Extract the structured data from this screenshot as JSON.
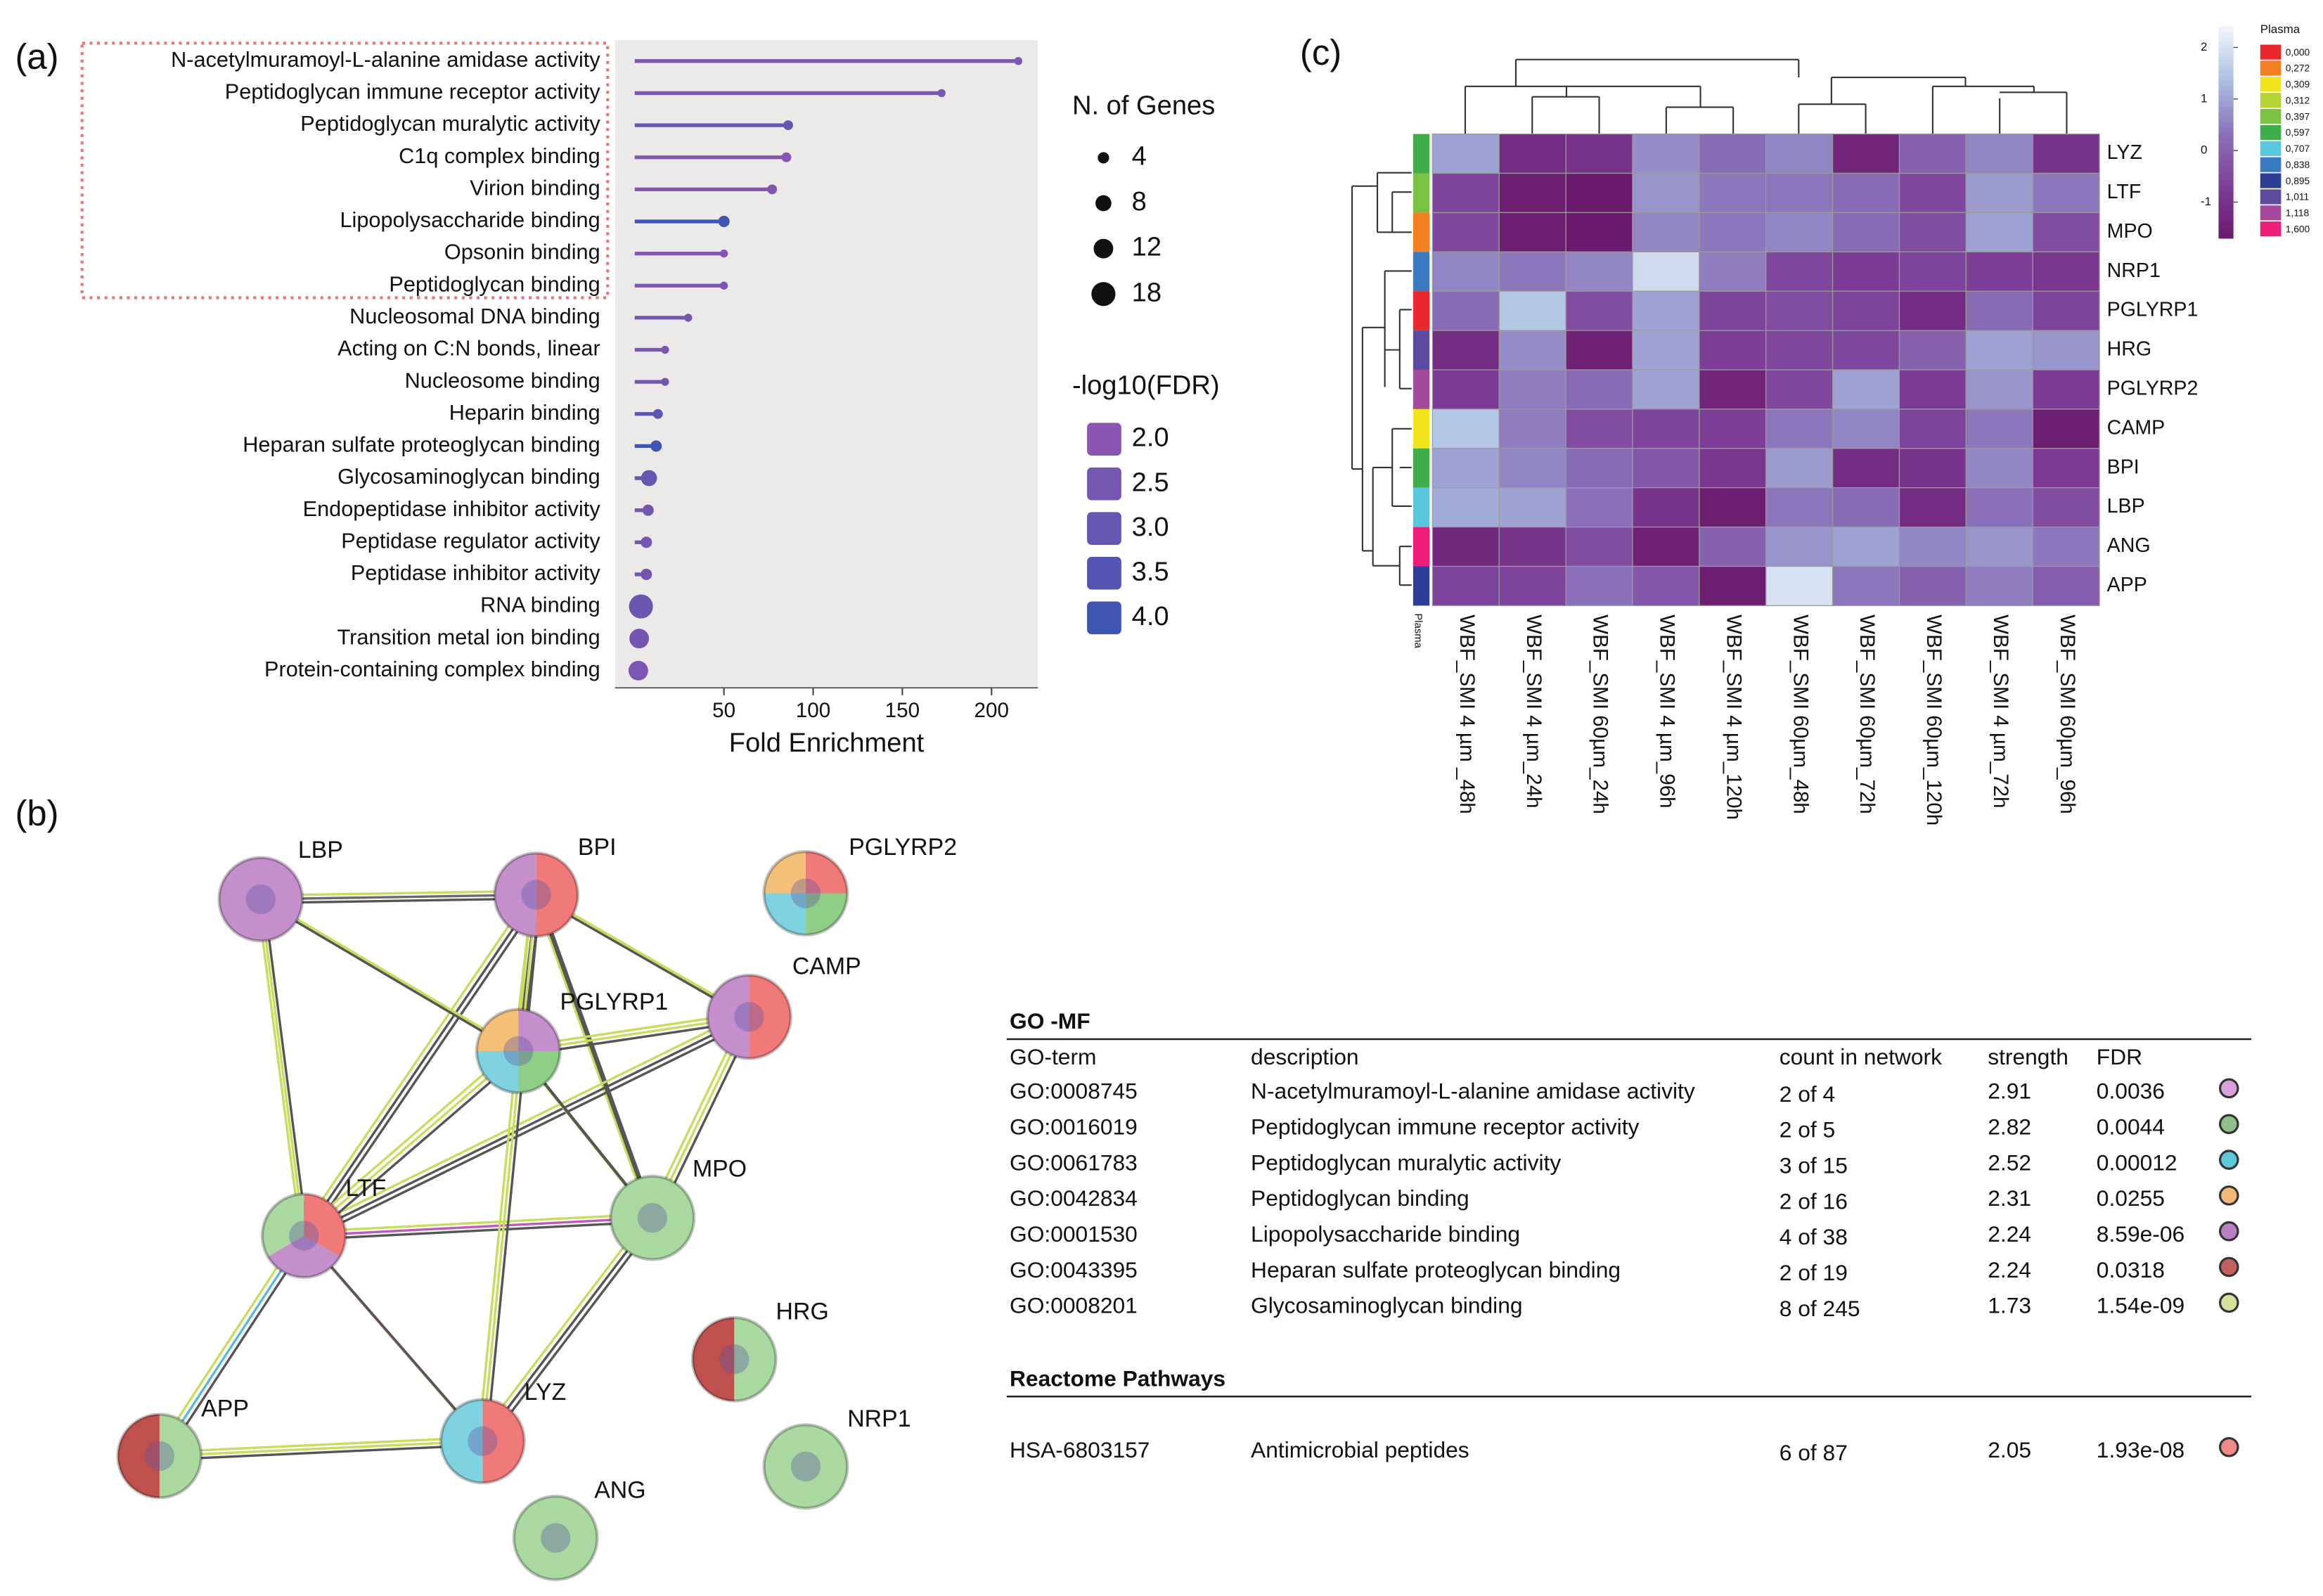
{
  "chart_data": [
    {
      "type": "lollipop",
      "panel_label": "(a)",
      "categories": [
        "N-acetylmuramoyl-L-alanine amidase activity",
        "Peptidoglycan immune receptor activity",
        "Peptidoglycan muralytic activity",
        "C1q complex binding",
        "Virion binding",
        "Lipopolysaccharide binding",
        "Opsonin binding",
        "Peptidoglycan binding",
        "Nucleosomal DNA binding",
        "Acting on C:N bonds, linear",
        "Nucleosome binding",
        "Heparin  binding",
        "Heparan sulfate proteoglycan binding",
        "Glycosaminoglycan binding",
        "Endopeptidase inhibitor activity",
        "Peptidase regulator activity",
        "Peptidase inhibitor activity",
        "RNA binding",
        "Transition metal ion binding",
        "Protein-containing complex binding"
      ],
      "values": [
        215,
        172,
        86,
        85,
        77,
        50,
        50,
        50,
        30,
        17,
        17,
        13,
        12,
        8,
        7.5,
        6.5,
        6.5,
        3.5,
        2.5,
        2
      ],
      "sizes": [
        2,
        2,
        3,
        3,
        3,
        4,
        2,
        2,
        2,
        2,
        2,
        3,
        4,
        8,
        4,
        4,
        4,
        18,
        12,
        12
      ],
      "fdr": [
        2.4,
        2.4,
        3.0,
        2.2,
        2.2,
        4.0,
        2.2,
        2.4,
        2.6,
        2.4,
        2.6,
        3.2,
        4.0,
        3.0,
        2.6,
        2.6,
        2.6,
        2.8,
        2.6,
        2.4
      ],
      "xlabel": "Fold Enrichment",
      "xlim": [
        -11,
        226
      ],
      "xticks": [
        50,
        100,
        150,
        200
      ],
      "size_legend": {
        "title": "N. of Genes",
        "values": [
          4,
          8,
          12,
          18
        ]
      },
      "color_legend": {
        "title": "-log10(FDR)",
        "ticks": [
          {
            "value": 2,
            "label": "2.0"
          },
          {
            "value": 2.5,
            "label": "2.5"
          },
          {
            "value": 3,
            "label": "3.0"
          },
          {
            "value": 3.5,
            "label": "3.5"
          },
          {
            "value": 4,
            "label": "4.0"
          }
        ],
        "colors": [
          "#8a56b2",
          "#3f55b0"
        ]
      }
    },
    {
      "type": "heatmap",
      "panel_label": "(c)",
      "rows": [
        "LYZ",
        "LTF",
        "MPO",
        "NRP1",
        "PGLYRP1",
        "HRG",
        "PGLYRP2",
        "CAMP",
        "BPI",
        "LBP",
        "ANG",
        "APP"
      ],
      "columns": [
        "WBF_SMI 4 µm _48h",
        "WBF_SMI 4 µm_24h",
        "WBF_SMI 60µm_24h",
        "WBF_SMI 4 µm_96h",
        "WBF_SMI 4 µm_120h",
        "WBF_SMI 60µm_48h",
        "WBF_SMI 60µm_72h",
        "WBF_SMI 60µm_120h",
        "WBF_SMI 4 µm_72h",
        "WBF_SMI 60µm_96h"
      ],
      "values": [
        [
          1.0,
          -1.2,
          -1.0,
          0.7,
          0.2,
          0.6,
          -1.4,
          0.0,
          0.6,
          -1.0
        ],
        [
          -0.6,
          -1.6,
          -1.7,
          0.8,
          0.4,
          0.4,
          0.2,
          -0.5,
          0.9,
          0.4
        ],
        [
          -0.5,
          -1.6,
          -1.8,
          0.6,
          0.4,
          0.6,
          0.2,
          -0.4,
          1.0,
          -0.4
        ],
        [
          0.6,
          0.4,
          0.6,
          1.9,
          0.5,
          -0.5,
          -0.8,
          -0.6,
          -0.7,
          -0.9
        ],
        [
          0.2,
          1.5,
          -0.4,
          1.0,
          -0.6,
          -0.4,
          -0.6,
          -1.2,
          0.2,
          -0.6
        ],
        [
          -1.2,
          0.7,
          -1.5,
          1.0,
          -0.7,
          -0.5,
          -0.5,
          0.0,
          1.0,
          0.8
        ],
        [
          -0.8,
          0.5,
          0.2,
          1.0,
          -1.4,
          -0.5,
          1.0,
          -0.8,
          0.8,
          -0.8
        ],
        [
          1.5,
          0.5,
          -0.4,
          -0.6,
          -0.7,
          0.4,
          0.6,
          -0.6,
          0.4,
          -1.6
        ],
        [
          1.0,
          0.6,
          0.2,
          -0.2,
          -0.9,
          0.9,
          -1.2,
          -1.0,
          0.6,
          -0.8
        ],
        [
          1.1,
          1.0,
          0.3,
          -1.0,
          -1.6,
          0.4,
          0.2,
          -1.2,
          0.3,
          -0.4
        ],
        [
          -1.3,
          -1.0,
          -0.4,
          -1.5,
          0.0,
          0.8,
          1.0,
          0.6,
          0.8,
          0.4
        ],
        [
          -0.6,
          -0.6,
          0.3,
          -0.2,
          -1.6,
          2.0,
          0.4,
          0.0,
          0.5,
          -0.1
        ]
      ],
      "zlim": [
        -1.7,
        2.4
      ],
      "zticks": [
        2,
        1,
        0,
        -1
      ],
      "colors": [
        "#6a1a6c",
        "#7d3f98",
        "#8a72ba",
        "#abc0e2",
        "#f2f6fc"
      ],
      "annotation": {
        "name": "Plasma",
        "values": [
          0.597,
          0.397,
          0.272,
          0.838,
          0,
          1.011,
          1.118,
          0.309,
          0.597,
          0.707,
          1.6,
          0.895
        ],
        "legend": [
          {
            "value": 0,
            "label": "0,000",
            "color": "#e8282e"
          },
          {
            "value": 0.272,
            "label": "0,272",
            "color": "#f47f20"
          },
          {
            "value": 0.309,
            "label": "0,309",
            "color": "#f1e31c"
          },
          {
            "value": 0.312,
            "label": "0,312",
            "color": "#b5d334"
          },
          {
            "value": 0.397,
            "label": "0,397",
            "color": "#7cc242"
          },
          {
            "value": 0.597,
            "label": "0,597",
            "color": "#3fae49"
          },
          {
            "value": 0.707,
            "label": "0,707",
            "color": "#5bc7df"
          },
          {
            "value": 0.838,
            "label": "0,838",
            "color": "#3a7ac0"
          },
          {
            "value": 0.895,
            "label": "0,895",
            "color": "#2d3e97"
          },
          {
            "value": 1.011,
            "label": "1,011",
            "color": "#5c4aa0"
          },
          {
            "value": 1.118,
            "label": "1,118",
            "color": "#a44a9c"
          },
          {
            "value": 1.6,
            "label": "1,600",
            "color": "#ed1e79"
          }
        ]
      }
    }
  ],
  "network": {
    "panel_label": "(b)",
    "nodes": [
      {
        "label": "LBP"
      },
      {
        "label": "BPI"
      },
      {
        "label": "PGLYRP2"
      },
      {
        "label": "CAMP"
      },
      {
        "label": "PGLYRP1"
      },
      {
        "label": "MPO"
      },
      {
        "label": "LTF"
      },
      {
        "label": "APP"
      },
      {
        "label": "LYZ"
      },
      {
        "label": "HRG"
      },
      {
        "label": "NRP1"
      },
      {
        "label": "ANG"
      }
    ]
  },
  "table": {
    "title": "GO -MF",
    "columns": [
      "GO-term",
      "description",
      "count in network",
      "strength",
      "FDR"
    ],
    "rows": [
      [
        "GO:0008745",
        "N-acetylmuramoyl-L-alanine amidase activity",
        "2 of 4",
        "2.91",
        "0.0036"
      ],
      [
        "GO:0016019",
        "Peptidoglycan immune receptor activity",
        "2 of 5",
        "2.82",
        "0.0044"
      ],
      [
        "GO:0061783",
        "Peptidoglycan muralytic activity",
        "3 of 15",
        "2.52",
        "0.00012"
      ],
      [
        "GO:0042834",
        "Peptidoglycan binding",
        "2 of 16",
        "2.31",
        "0.0255"
      ],
      [
        "GO:0001530",
        "Lipopolysaccharide binding",
        "4 of 38",
        "2.24",
        "8.59e-06"
      ],
      [
        "GO:0043395",
        "Heparan sulfate proteoglycan binding",
        "2 of 19",
        "2.24",
        "0.0318"
      ],
      [
        "GO:0008201",
        "Glycosaminoglycan binding",
        "8 of 245",
        "1.73",
        "1.54e-09"
      ]
    ],
    "marker_colors": [
      "#d9a0d9",
      "#8fbf8a",
      "#5fc8d8",
      "#f0b87a",
      "#b77fc4",
      "#c06060",
      "#d8e0a0"
    ],
    "section2": "Reactome Pathways",
    "rows2": [
      [
        "HSA-6803157",
        "Antimicrobial peptides",
        "6 of 87",
        "2.05",
        "1.93e-08"
      ]
    ],
    "marker_colors2": [
      "#f08a8a"
    ]
  }
}
